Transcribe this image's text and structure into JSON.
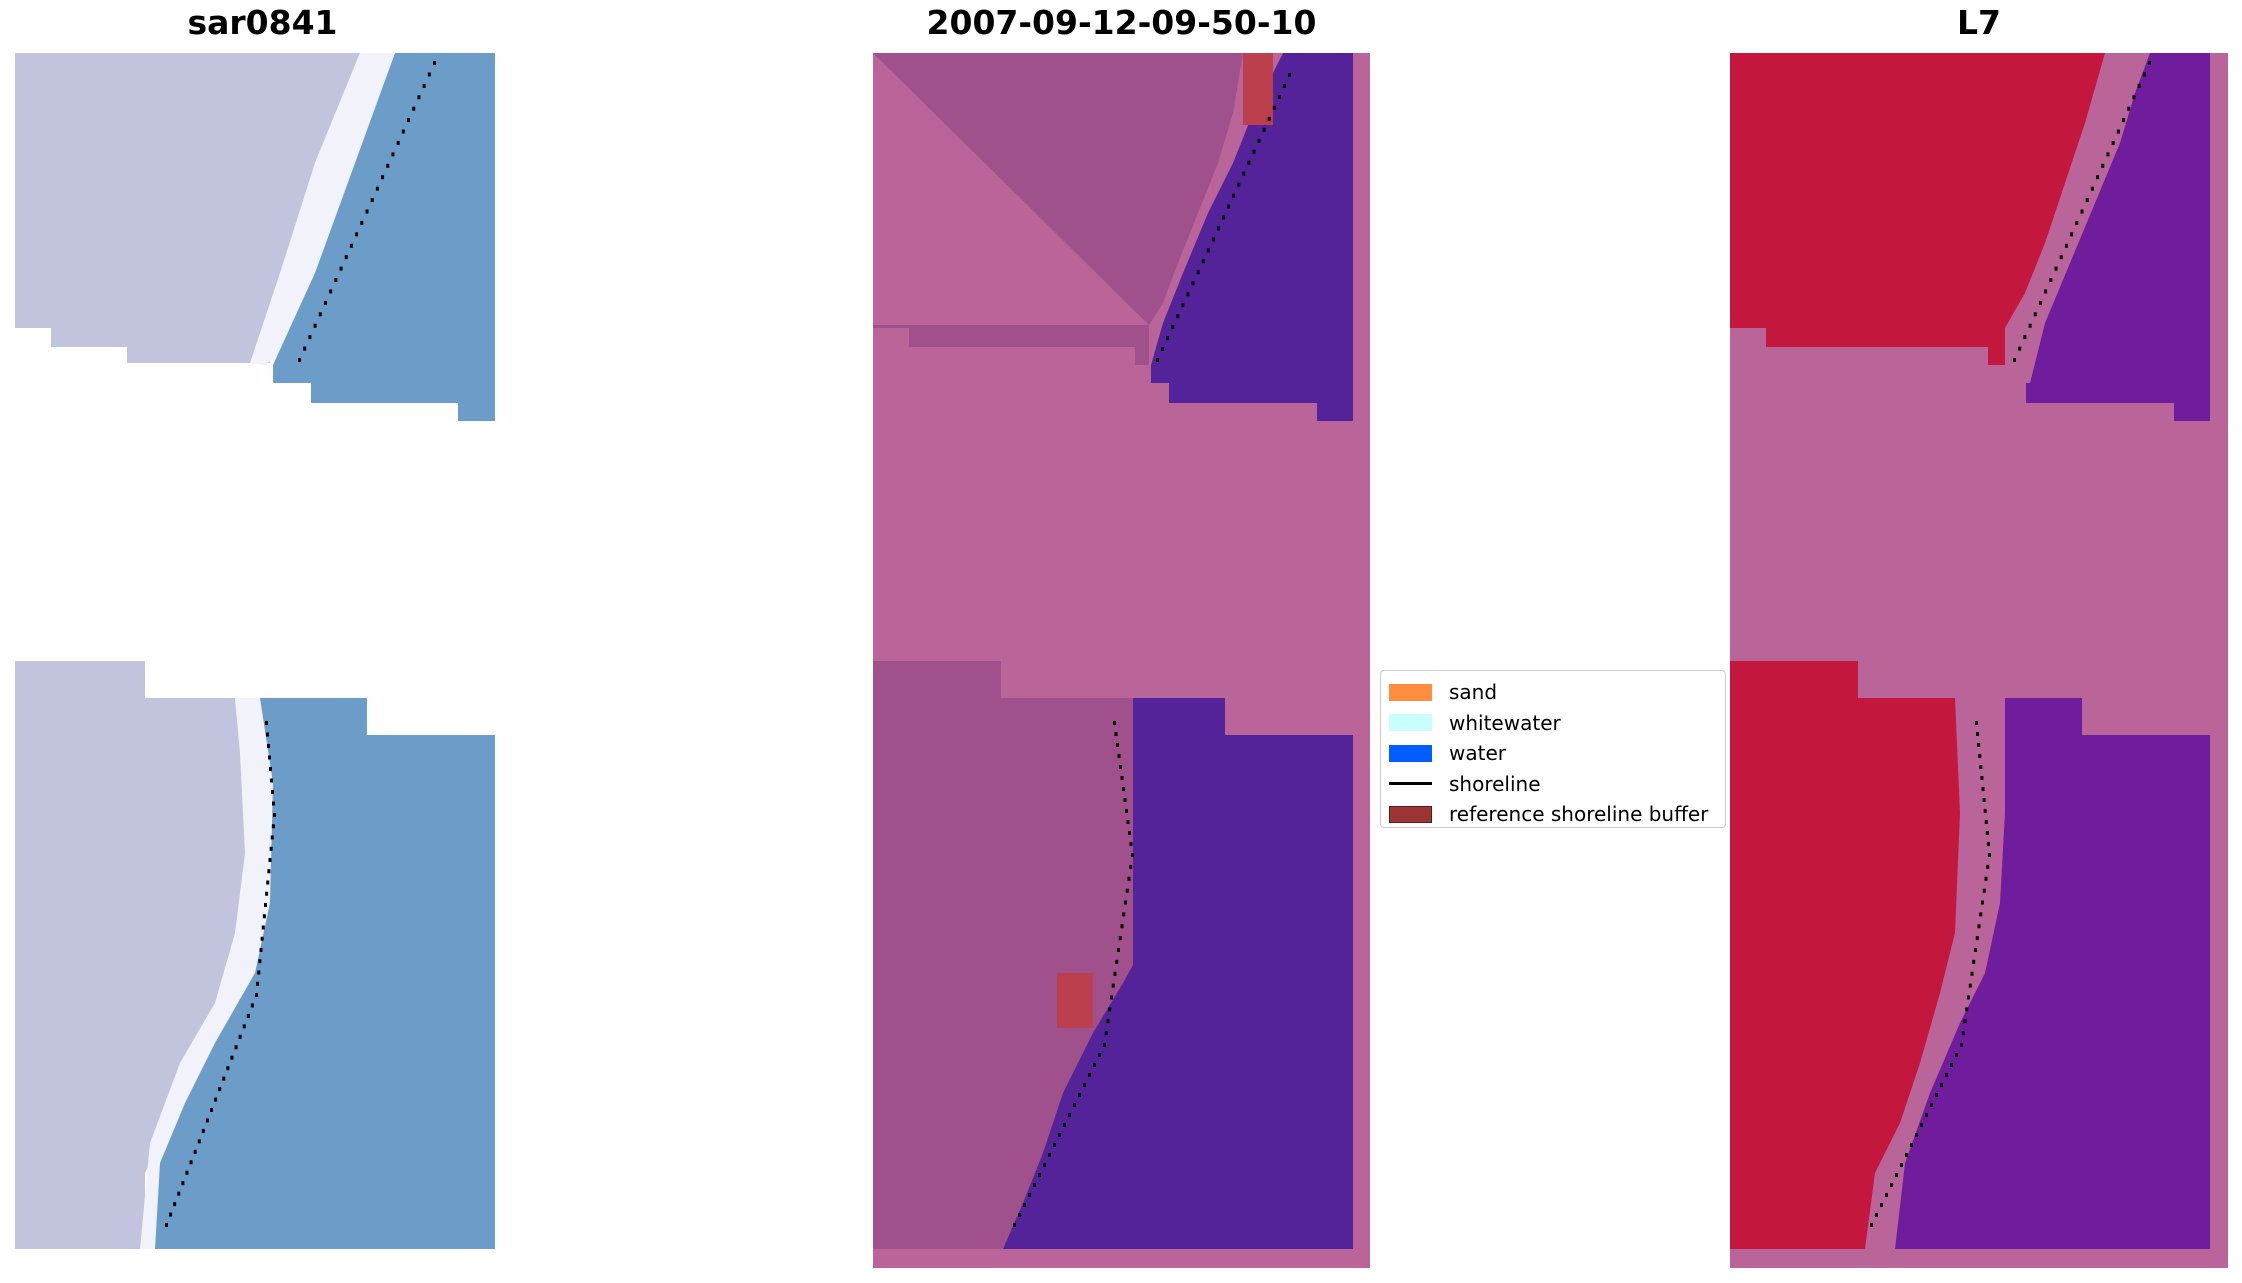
{
  "panels": [
    {
      "id": "sar",
      "title": "sar0841"
    },
    {
      "id": "class",
      "title": "2007-09-12-09-50-10"
    },
    {
      "id": "index",
      "title": "L7"
    }
  ],
  "legend": {
    "items": [
      {
        "label": "sand",
        "kind": "patch",
        "color": "#FF8C3F",
        "edge": "#FF8C3F"
      },
      {
        "label": "whitewater",
        "kind": "patch",
        "color": "#C7FFFF",
        "edge": "#C7FFFF"
      },
      {
        "label": "water",
        "kind": "patch",
        "color": "#005EFF",
        "edge": "#005EFF"
      },
      {
        "label": "shoreline",
        "kind": "line",
        "color": "#000000"
      },
      {
        "label": "reference shoreline buffer",
        "kind": "patch",
        "color": "#9C3535",
        "edge": "#5A1A1A"
      }
    ]
  },
  "colors": {
    "sar_land": "#C2C4DE",
    "sar_white": "#F2F2FA",
    "sar_water": "#6C9CC8",
    "class_land": "#A0508A",
    "class_nodata": "#BA6599",
    "class_water": "#54239A",
    "class_buffer": "#BC3F4E",
    "index_land": "#C4173E",
    "index_nodata": "#BA6599",
    "index_water": "#6F1D9D",
    "shoreline": "#000000"
  }
}
